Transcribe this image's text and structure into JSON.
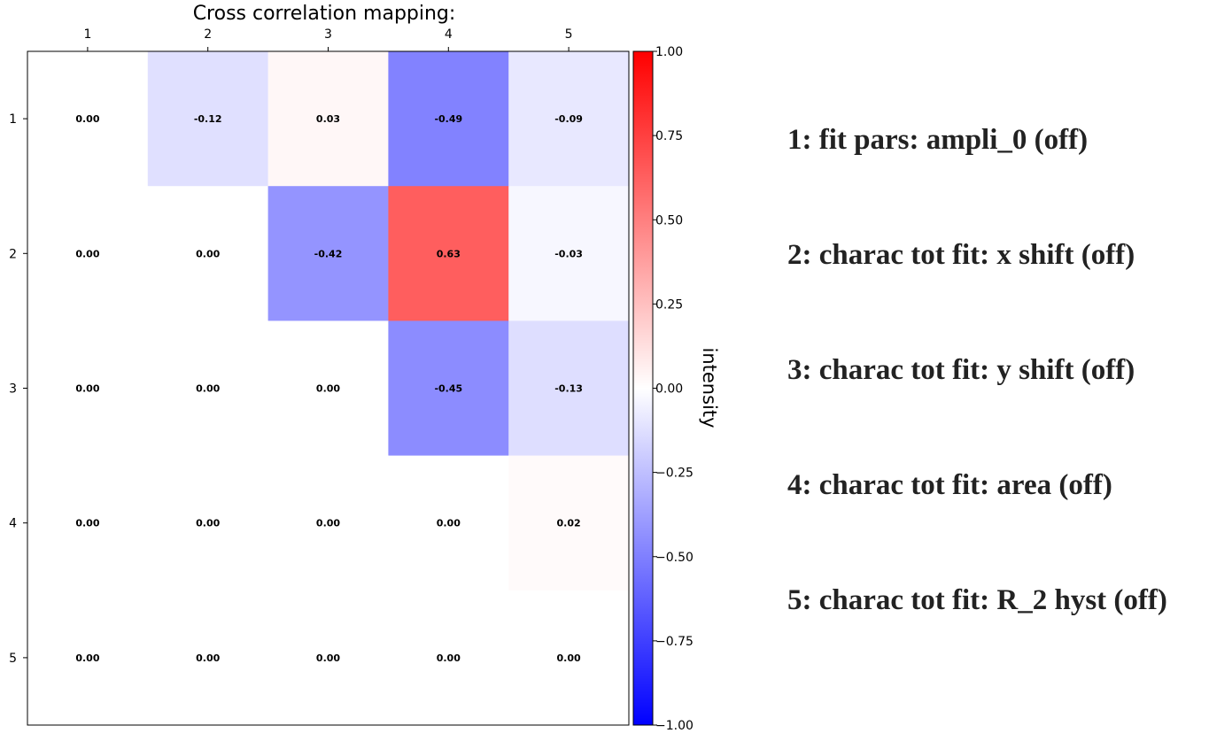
{
  "chart_data": {
    "type": "heatmap",
    "title": "Cross correlation mapping:",
    "x_categories": [
      "1",
      "2",
      "3",
      "4",
      "5"
    ],
    "y_categories": [
      "1",
      "2",
      "3",
      "4",
      "5"
    ],
    "values": [
      [
        0.0,
        -0.12,
        0.03,
        -0.49,
        -0.09
      ],
      [
        0.0,
        0.0,
        -0.42,
        0.63,
        -0.03
      ],
      [
        0.0,
        0.0,
        0.0,
        -0.45,
        -0.13
      ],
      [
        0.0,
        0.0,
        0.0,
        0.0,
        0.02
      ],
      [
        0.0,
        0.0,
        0.0,
        0.0,
        0.0
      ]
    ],
    "cell_labels": [
      [
        "0.00",
        "-0.12",
        "0.03",
        "-0.49",
        "-0.09"
      ],
      [
        "0.00",
        "0.00",
        "-0.42",
        "0.63",
        "-0.03"
      ],
      [
        "0.00",
        "0.00",
        "0.00",
        "-0.45",
        "-0.13"
      ],
      [
        "0.00",
        "0.00",
        "0.00",
        "0.00",
        "0.02"
      ],
      [
        "0.00",
        "0.00",
        "0.00",
        "0.00",
        "0.00"
      ]
    ],
    "colormap": "bwr",
    "colors": {
      "low": "#0000ff",
      "mid": "#ffffff",
      "high": "#ff0000"
    },
    "colorbar": {
      "label": "intensity",
      "range": [
        -1.0,
        1.0
      ],
      "ticks": [
        1.0,
        0.75,
        0.5,
        0.25,
        0.0,
        -0.25,
        -0.5,
        -0.75,
        -1.0
      ],
      "tick_labels": [
        "1.00",
        "0.75",
        "0.50",
        "0.25",
        "0.00",
        "−0.25",
        "−0.50",
        "−0.75",
        "−1.00"
      ]
    },
    "x_axis_position": "top",
    "grid": false
  },
  "legend": {
    "items": [
      "1: fit pars: ampli_0 (off)",
      "2: charac tot fit: x shift (off)",
      "3: charac tot fit: y shift (off)",
      "4: charac tot fit: area (off)",
      "5: charac tot fit: R_2 hyst (off)"
    ]
  }
}
